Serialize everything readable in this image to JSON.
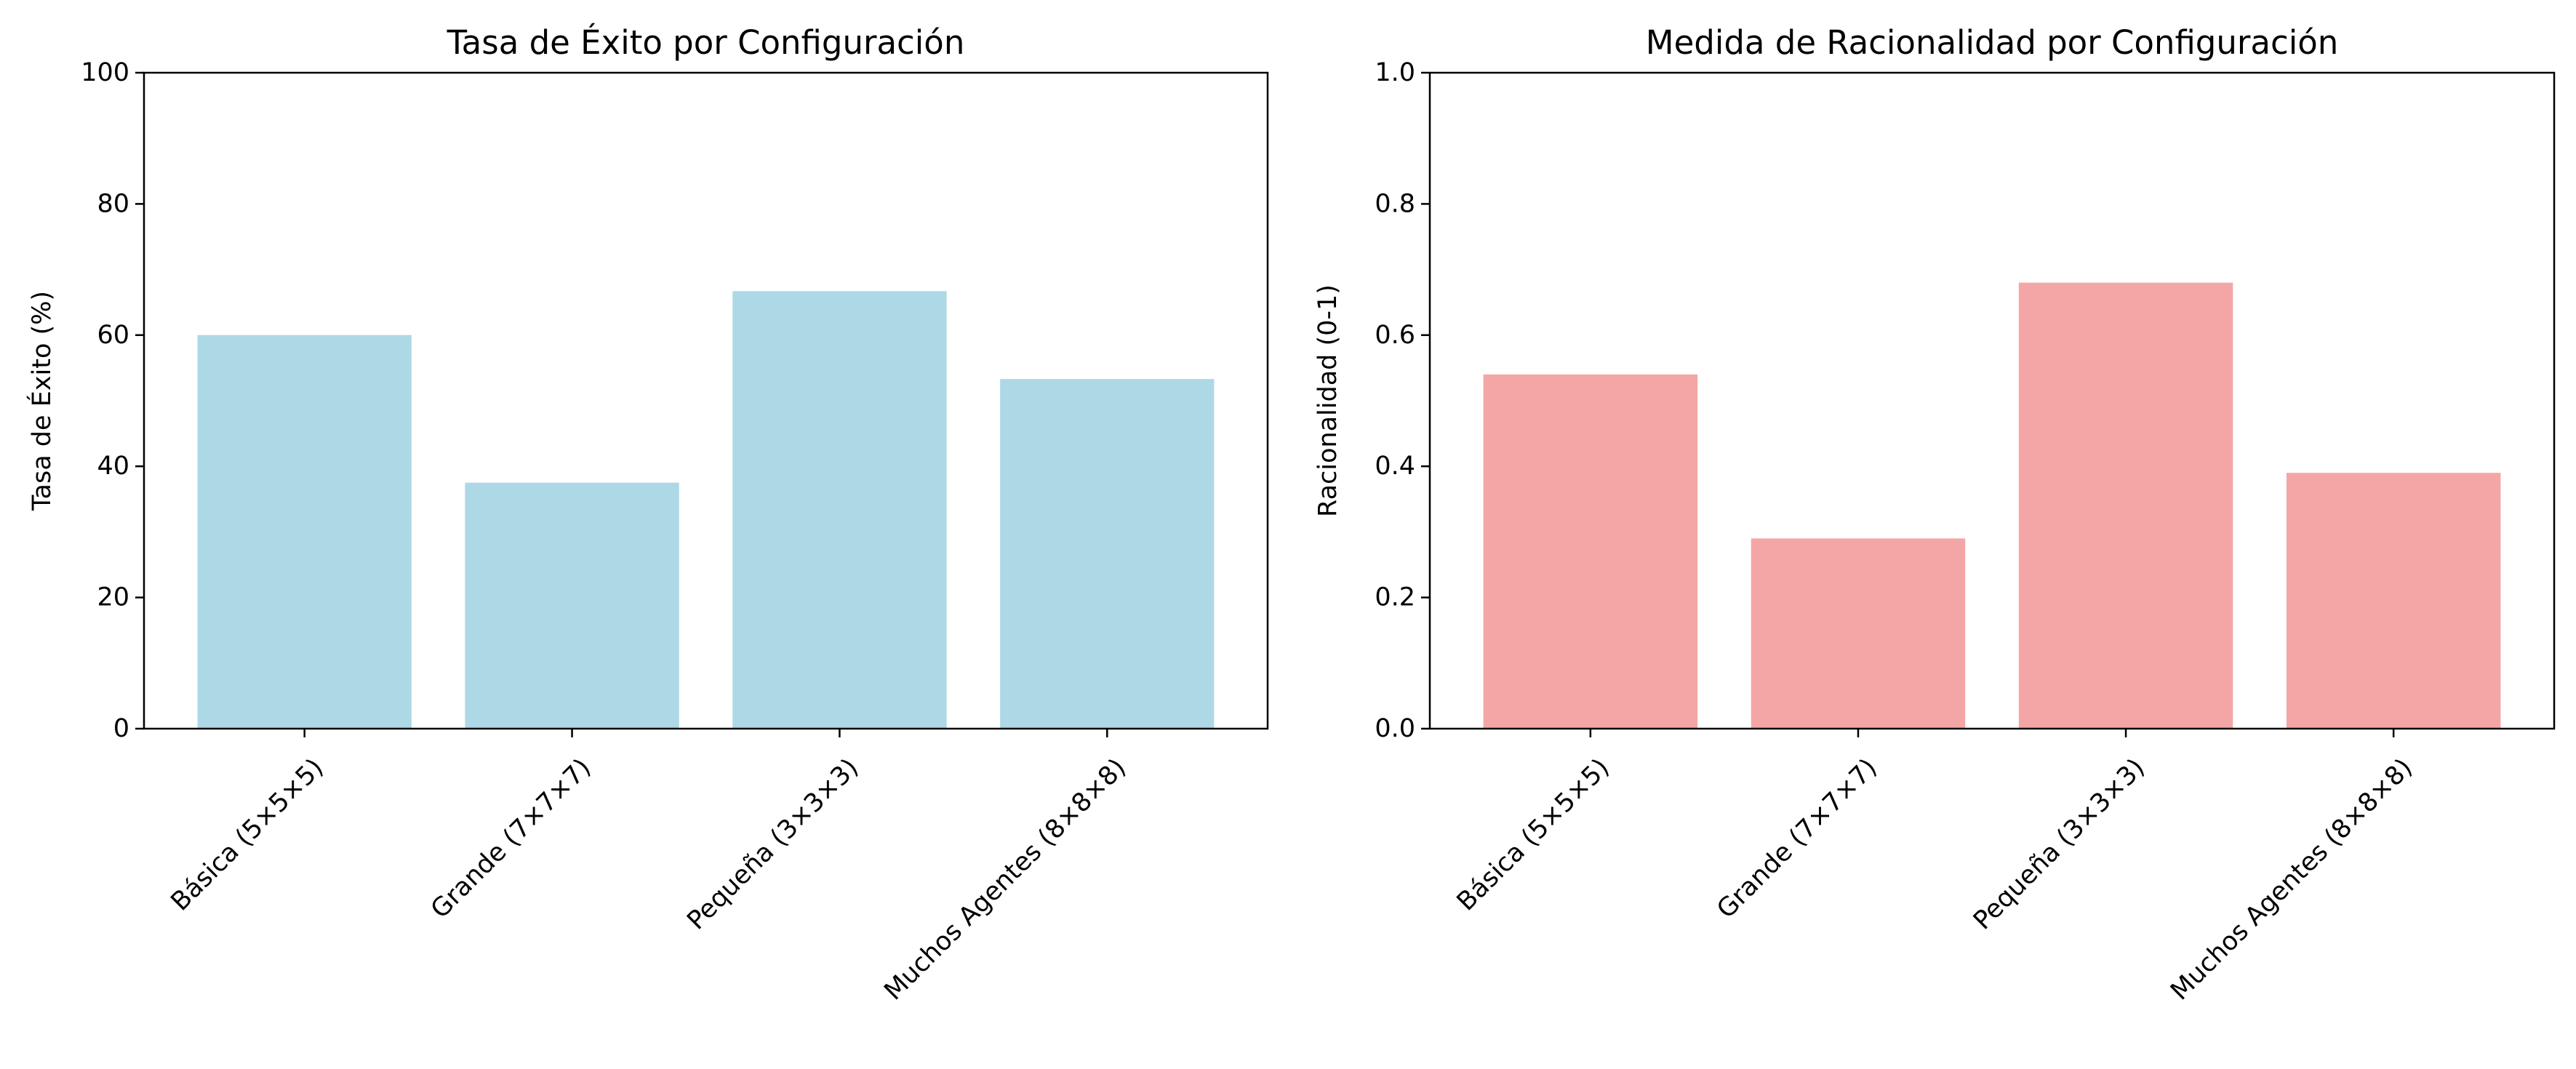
{
  "chart_data": [
    {
      "type": "bar",
      "title": "Tasa de Éxito por Configuración",
      "xlabel": "",
      "ylabel": "Tasa de Éxito (%)",
      "categories": [
        "Básica (5×5×5)",
        "Grande (7×7×7)",
        "Pequeña (3×3×3)",
        "Muchos Agentes (8×8×8)"
      ],
      "values": [
        60.0,
        37.5,
        66.7,
        53.3
      ],
      "ylim": [
        0,
        100
      ],
      "yticks": [
        0,
        20,
        40,
        60,
        80,
        100
      ],
      "ytick_labels": [
        "0",
        "20",
        "40",
        "60",
        "80",
        "100"
      ],
      "color": "#add8e6",
      "grid": false,
      "legend": "none"
    },
    {
      "type": "bar",
      "title": "Medida de Racionalidad por Configuración",
      "xlabel": "",
      "ylabel": "Racionalidad (0-1)",
      "categories": [
        "Básica (5×5×5)",
        "Grande (7×7×7)",
        "Pequeña (3×3×3)",
        "Muchos Agentes (8×8×8)"
      ],
      "values": [
        0.54,
        0.29,
        0.68,
        0.39
      ],
      "ylim": [
        0,
        1
      ],
      "yticks": [
        0,
        0.2,
        0.4,
        0.6,
        0.8,
        1.0
      ],
      "ytick_labels": [
        "0.0",
        "0.2",
        "0.4",
        "0.6",
        "0.8",
        "1.0"
      ],
      "color": "#f08080",
      "grid": false,
      "legend": "none"
    }
  ]
}
